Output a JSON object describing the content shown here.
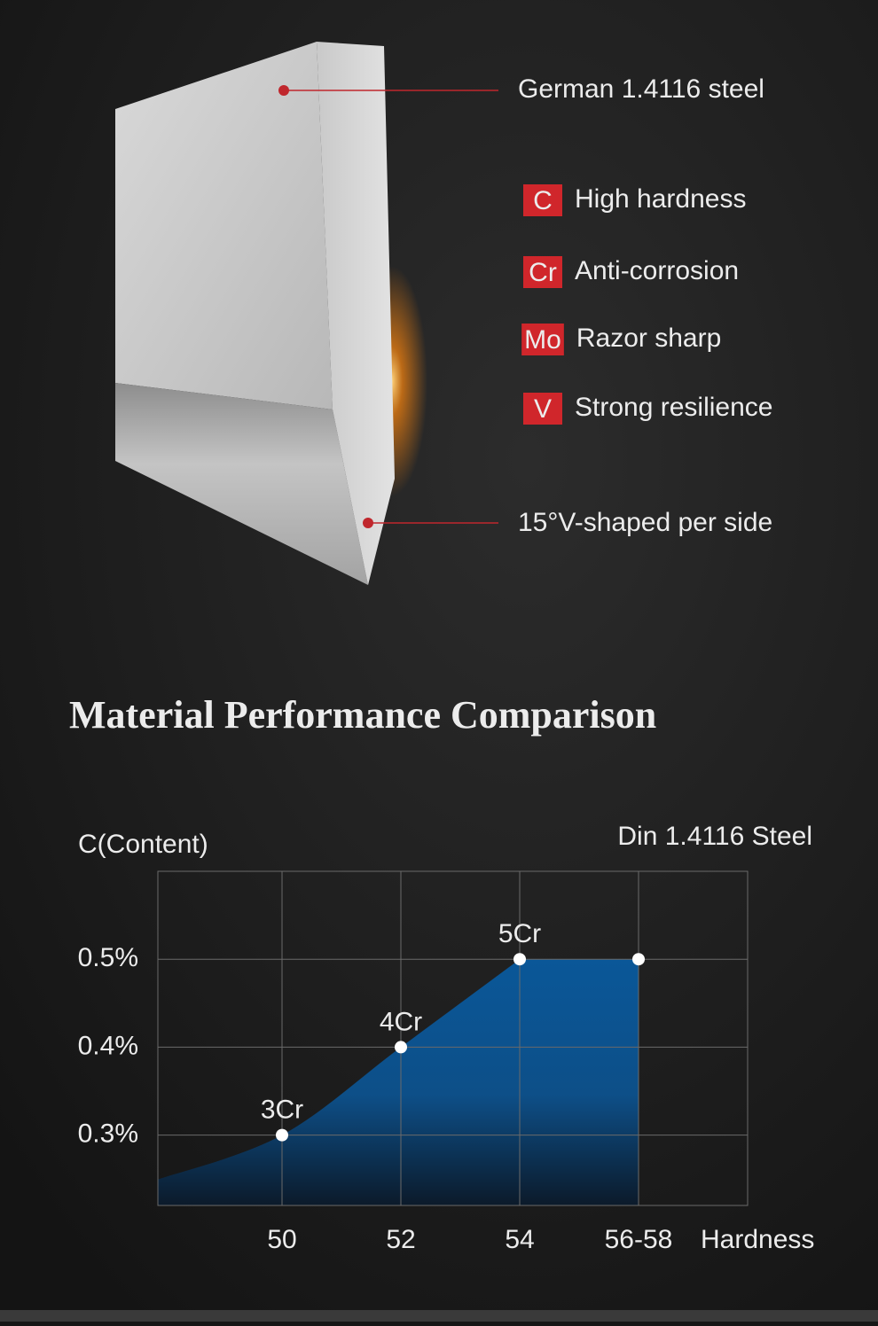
{
  "callouts": [
    "German 1.4116 steel",
    "15°V-shaped per side"
  ],
  "features": [
    {
      "symbol": "C",
      "label": "High hardness"
    },
    {
      "symbol": "Cr",
      "label": "Anti-corrosion"
    },
    {
      "symbol": "Mo",
      "label": "Razor sharp"
    },
    {
      "symbol": "V",
      "label": "Strong resilience"
    }
  ],
  "chart_data": {
    "type": "area",
    "title": "Material Performance Comparison",
    "y_label": "C(Content)",
    "x_label": "Hardness",
    "series_name": "Din 1.4116 Steel",
    "categories": [
      "50",
      "52",
      "54",
      "56-58"
    ],
    "values": [
      0.3,
      0.4,
      0.5,
      0.5
    ],
    "point_labels": [
      "3Cr",
      "4Cr",
      "5Cr",
      null
    ],
    "color": "#0a5798",
    "ylim": [
      0.22,
      0.6
    ],
    "yticks": [
      {
        "value": 0.3,
        "label": "0.3%"
      },
      {
        "value": 0.4,
        "label": "0.4%"
      },
      {
        "value": 0.5,
        "label": "0.5%"
      }
    ],
    "grid": true
  }
}
